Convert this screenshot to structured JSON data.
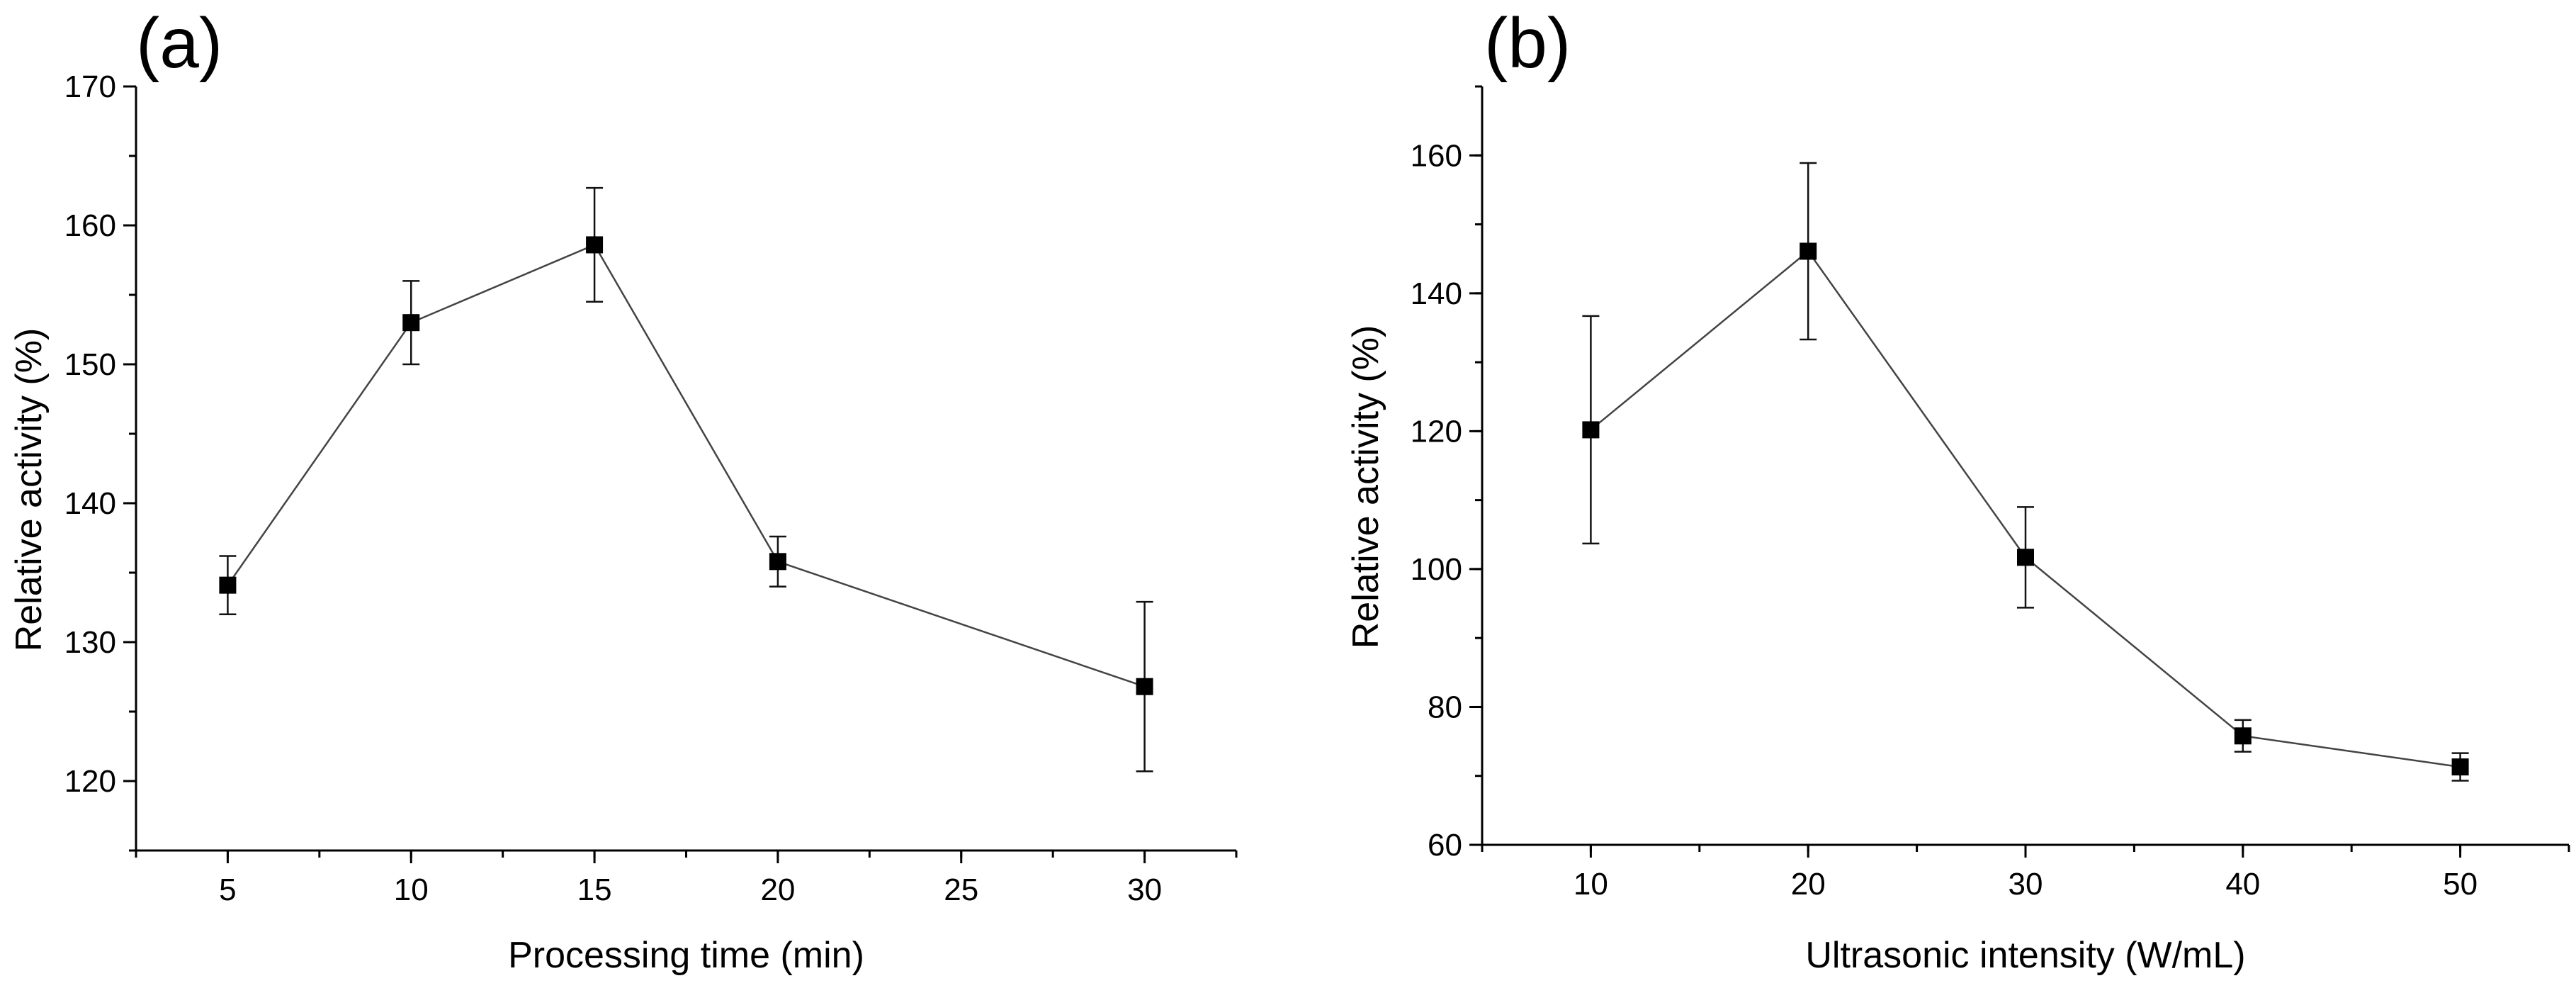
{
  "chart_data": [
    {
      "type": "line",
      "panel_label": "(a)",
      "title": "",
      "xlabel": "Processing time (min)",
      "ylabel": "Relative activity (%)",
      "xlim": [
        2.5,
        32.5
      ],
      "ylim": [
        115,
        170
      ],
      "x_ticks": [
        5,
        10,
        15,
        20,
        25,
        30
      ],
      "y_ticks": [
        120,
        130,
        140,
        150,
        160,
        170
      ],
      "series": [
        {
          "name": "Relative activity",
          "x": [
            5,
            10,
            15,
            20,
            30
          ],
          "y": [
            134.1,
            153.0,
            158.6,
            135.8,
            126.8
          ],
          "error": [
            2.1,
            3.0,
            4.1,
            1.8,
            6.1
          ]
        }
      ]
    },
    {
      "type": "line",
      "panel_label": "(b)",
      "title": "",
      "xlabel": "Ultrasonic intensity (W/mL)",
      "ylabel": "Relative activity (%)",
      "xlim": [
        5,
        55
      ],
      "ylim": [
        60,
        170
      ],
      "x_ticks": [
        10,
        20,
        30,
        40,
        50
      ],
      "y_ticks": [
        60,
        80,
        100,
        120,
        140,
        160
      ],
      "series": [
        {
          "name": "Relative activity",
          "x": [
            10,
            20,
            30,
            40,
            50
          ],
          "y": [
            120.2,
            146.1,
            101.7,
            75.8,
            71.3
          ],
          "error": [
            16.5,
            12.8,
            7.3,
            2.3,
            2.0
          ]
        }
      ]
    }
  ]
}
